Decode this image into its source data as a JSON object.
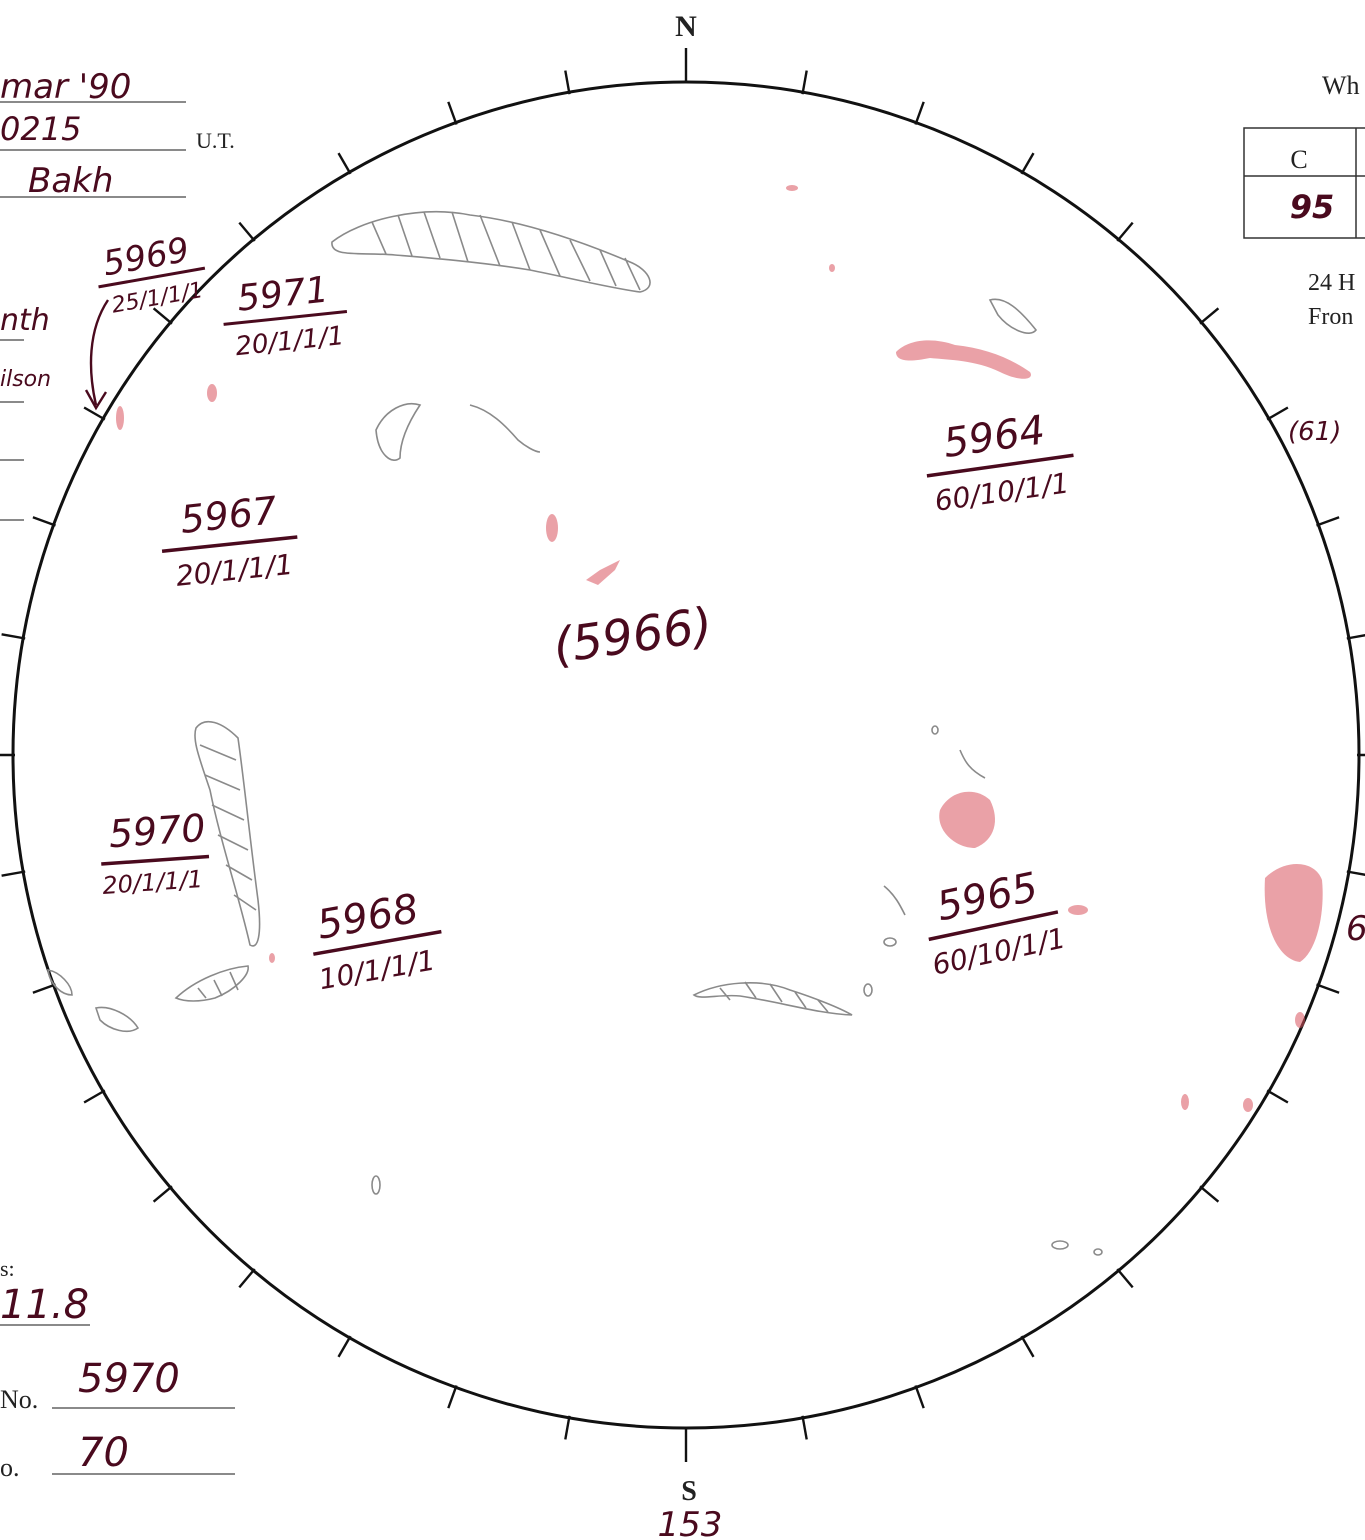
{
  "compass": {
    "north": "N",
    "south": "S",
    "south_value": "153"
  },
  "header": {
    "date": "mar '90",
    "time": "0215",
    "ut_label": "U.T.",
    "observer": "Bakh",
    "left_note_1": "nth",
    "left_note_2": "ilson"
  },
  "right_panel": {
    "title_fragment": "Wh",
    "table": {
      "header": "C",
      "value": "95"
    },
    "note_line_1": "24 H",
    "note_line_2": "Fron",
    "limb_value_top": "(61)",
    "limb_value_right": "6"
  },
  "regions": [
    {
      "number": "5969",
      "code": "25/1/1/1"
    },
    {
      "number": "5971",
      "code": "20/1/1/1"
    },
    {
      "number": "5964",
      "code": "60/10/1/1"
    },
    {
      "number": "5967",
      "code": "20/1/1/1"
    },
    {
      "number": "5970",
      "code": "20/1/1/1"
    },
    {
      "number": "5968",
      "code": "10/1/1/1"
    },
    {
      "number": "5965",
      "code": "60/10/1/1"
    }
  ],
  "center_label": "(5966)",
  "footer": {
    "value_label": "s:",
    "value": "11.8",
    "region_no_label": "No.",
    "region_no": "5970",
    "count_label": "o.",
    "count": "70"
  },
  "colors": {
    "ink": "#4a0a1e",
    "plage": "#d9535f",
    "pencil": "#8a8a8a"
  }
}
